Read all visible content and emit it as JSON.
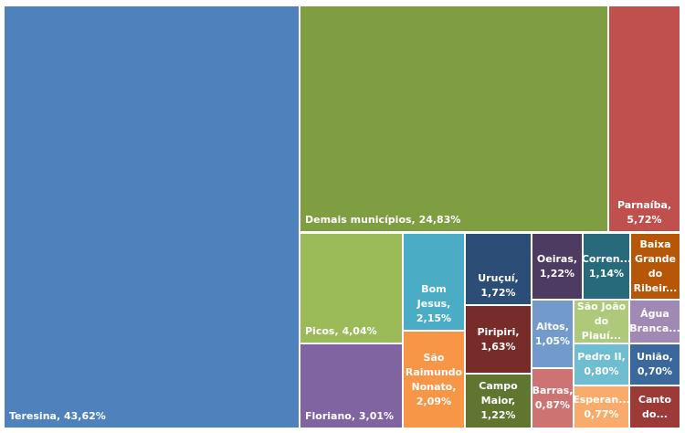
{
  "chart_data": {
    "type": "treemap",
    "title": "",
    "items": [
      {
        "name": "Teresina",
        "value": 43.62,
        "label": "Teresina, 43,62%",
        "color": "#4f81bd"
      },
      {
        "name": "Demais municípios",
        "value": 24.83,
        "label": "Demais municípios, 24,83%",
        "color": "#7f9d41"
      },
      {
        "name": "Parnaíba",
        "value": 5.72,
        "label": "Parnaíba,\n5,72%",
        "color": "#c0504d"
      },
      {
        "name": "Picos",
        "value": 4.04,
        "label": "Picos, 4,04%",
        "color": "#9bbb59"
      },
      {
        "name": "Floriano",
        "value": 3.01,
        "label": "Floriano, 3,01%",
        "color": "#8064a2"
      },
      {
        "name": "Bom Jesus",
        "value": 2.15,
        "label": "Bom Jesus,\n2,15%",
        "color": "#4bacc6"
      },
      {
        "name": "São Raimundo Nonato",
        "value": 2.09,
        "label": "São\nRaimundo\nNonato,\n2,09%",
        "color": "#f79646"
      },
      {
        "name": "Uruçuí",
        "value": 1.72,
        "label": "Uruçuí,\n1,72%",
        "color": "#2c4d75"
      },
      {
        "name": "Piripiri",
        "value": 1.63,
        "label": "Piripiri,\n1,63%",
        "color": "#772c2a"
      },
      {
        "name": "Campo Maior",
        "value": 1.22,
        "label": "Campo\nMaior,\n1,22%",
        "color": "#5f7530"
      },
      {
        "name": "Oeiras",
        "value": 1.22,
        "label": "Oeiras,\n1,22%",
        "color": "#4d3b62"
      },
      {
        "name": "Corren...",
        "value": 1.14,
        "label": "Corren...\n1,14%",
        "color": "#276a7c"
      },
      {
        "name": "Baixa Grande do Ribeir...",
        "label": "Baixa\nGrande\ndo\nRibeir...",
        "color": "#b65708"
      },
      {
        "name": "Altos",
        "value": 1.05,
        "label": "Altos,\n1,05%",
        "color": "#729aca"
      },
      {
        "name": "Barras",
        "value": 0.87,
        "label": "Barras,\n0,87%",
        "color": "#cd7371"
      },
      {
        "name": "São João do Piauí...",
        "label": "São João\ndo Piauí...",
        "color": "#afc97a"
      },
      {
        "name": "Água Branca...",
        "label": "Água\nBranca...",
        "color": "#a08ab5"
      },
      {
        "name": "Pedro II",
        "value": 0.8,
        "label": "Pedro II,\n0,80%",
        "color": "#6fbdd1"
      },
      {
        "name": "União",
        "value": 0.7,
        "label": "União,\n0,70%",
        "color": "#3a679c"
      },
      {
        "name": "Esperan...",
        "value": 0.77,
        "label": "Esperan...\n0,77%",
        "color": "#f9ab6b"
      },
      {
        "name": "Canto do...",
        "label": "Canto\ndo...",
        "color": "#9c3a37"
      }
    ]
  }
}
